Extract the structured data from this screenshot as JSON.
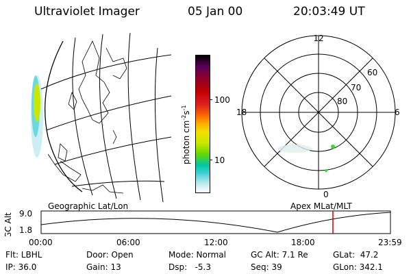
{
  "header": {
    "instrument": "Ultraviolet Imager",
    "date": "05 Jan 00",
    "time": "20:03:49 UT"
  },
  "map": {
    "caption": "Geographic Lat/Lon"
  },
  "colorbar": {
    "label": "photon cm",
    "label_exp": "-2",
    "label_s": "s",
    "label_s_exp": "-1",
    "ticks": [
      "100",
      "10"
    ],
    "colors": [
      "#000000",
      "#5a005a",
      "#8a0030",
      "#c00000",
      "#e02020",
      "#ff6a00",
      "#ffb000",
      "#f4e000",
      "#c8e800",
      "#66d800",
      "#00c8a0",
      "#40d0d8",
      "#b8e8f0",
      "#ffffff"
    ]
  },
  "polar": {
    "caption": "Apex MLat/MLT",
    "mlt_labels": {
      "top": "12",
      "left": "18",
      "right": "6",
      "bottom": "0"
    },
    "lat_labels": [
      "60",
      "70",
      "80"
    ],
    "point_color": "#33dd33"
  },
  "timeline": {
    "ylabel": "GC Alt",
    "y_ticks": [
      "9.0",
      "1.8"
    ],
    "x_ticks": [
      "00:00",
      "06:00",
      "12:00",
      "18:00",
      "23:59"
    ],
    "current_time_marker": "20:03:49",
    "marker_color": "#cc0000"
  },
  "info": {
    "row1": {
      "flt": "Flt: LBHL",
      "door": "Door: Open",
      "mode": "Mode: Normal",
      "gcalt": "GC Alt: 7.1 Re",
      "glat": "GLat:  47.2"
    },
    "row2": {
      "ip": "IP: 36.0",
      "gain": "Gain: 13",
      "dsp": "Dsp:   -5.3",
      "seq": "Seq: 39",
      "glon": "GLon: 342.1"
    }
  }
}
